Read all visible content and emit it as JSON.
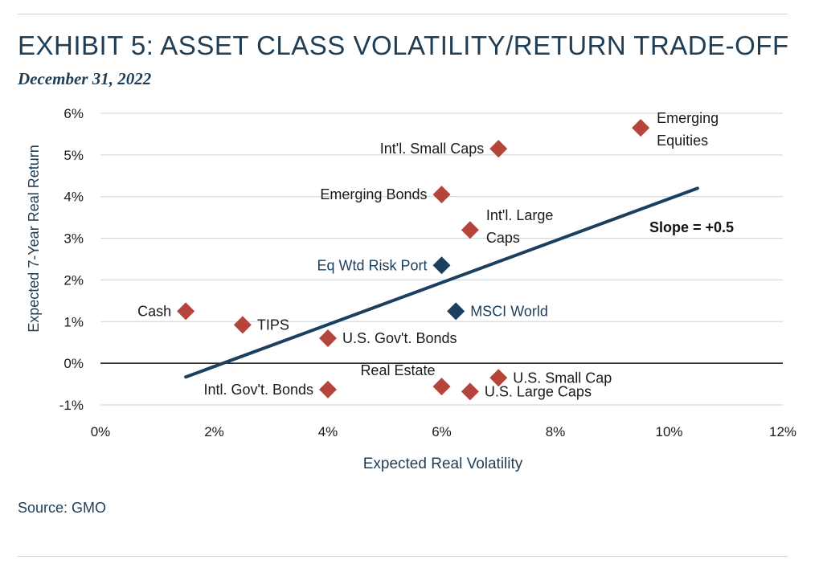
{
  "header": {
    "title": "EXHIBIT 5: ASSET CLASS VOLATILITY/RETURN TRADE-OFF",
    "subtitle": "December 31, 2022"
  },
  "footer": {
    "source": "Source: GMO"
  },
  "colors": {
    "red": "#b5443a",
    "navy": "#1b3f5e",
    "text": "#1a1a1a",
    "grid": "#c9d3da"
  },
  "chart_data": {
    "type": "scatter",
    "xlabel": "Expected Real Volatility",
    "ylabel": "Expected 7-Year Real Return",
    "xlim": [
      0,
      12
    ],
    "ylim": [
      -1,
      6
    ],
    "x_ticks": [
      0,
      2,
      4,
      6,
      8,
      10,
      12
    ],
    "y_ticks": [
      -1,
      0,
      1,
      2,
      3,
      4,
      5,
      6
    ],
    "x_tick_labels": [
      "0%",
      "2%",
      "4%",
      "6%",
      "8%",
      "10%",
      "12%"
    ],
    "y_tick_labels": [
      "-1%",
      "0%",
      "1%",
      "2%",
      "3%",
      "4%",
      "5%",
      "6%"
    ],
    "grid": "horizontal",
    "points": [
      {
        "label": "Cash",
        "x": 1.5,
        "y": 1.25,
        "color": "red",
        "anchor": "left"
      },
      {
        "label": "TIPS",
        "x": 2.5,
        "y": 0.92,
        "color": "red",
        "anchor": "right"
      },
      {
        "label": "U.S. Gov't. Bonds",
        "x": 4.0,
        "y": 0.6,
        "color": "red",
        "anchor": "right"
      },
      {
        "label": "Intl. Gov't. Bonds",
        "x": 4.0,
        "y": -0.63,
        "color": "red",
        "anchor": "left"
      },
      {
        "label": "Real Estate",
        "x": 6.0,
        "y": -0.56,
        "color": "red",
        "anchor": "above-left"
      },
      {
        "label": "U.S. Large Caps",
        "x": 6.5,
        "y": -0.68,
        "color": "red",
        "anchor": "right"
      },
      {
        "label": "U.S. Small Cap",
        "x": 7.0,
        "y": -0.35,
        "color": "red",
        "anchor": "right"
      },
      {
        "label": "MSCI World",
        "x": 6.25,
        "y": 1.25,
        "color": "navy",
        "anchor": "right"
      },
      {
        "label": "Eq Wtd Risk Port",
        "x": 6.0,
        "y": 2.35,
        "color": "navy",
        "anchor": "left"
      },
      {
        "label": "Int'l. Large Caps",
        "lines": [
          "Int'l. Large",
          "Caps"
        ],
        "x": 6.5,
        "y": 3.2,
        "color": "red",
        "anchor": "right-multi"
      },
      {
        "label": "Emerging Bonds",
        "x": 6.0,
        "y": 4.05,
        "color": "red",
        "anchor": "left"
      },
      {
        "label": "Int'l. Small Caps",
        "x": 7.0,
        "y": 5.15,
        "color": "red",
        "anchor": "left"
      },
      {
        "label": "Emerging Equities",
        "lines": [
          "Emerging",
          "Equities"
        ],
        "x": 9.5,
        "y": 5.65,
        "color": "red",
        "anchor": "right-multi"
      }
    ],
    "trendline": {
      "label": "Slope = +0.5",
      "x": [
        1.5,
        10.5
      ],
      "y": [
        -0.33,
        4.2
      ]
    }
  }
}
